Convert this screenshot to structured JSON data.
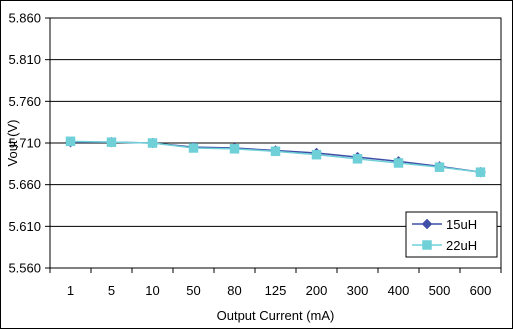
{
  "chart_data": {
    "type": "line",
    "title": "",
    "xlabel": "Output Current (mA)",
    "ylabel": "Vout (V)",
    "categories": [
      "1",
      "5",
      "10",
      "50",
      "80",
      "125",
      "200",
      "300",
      "400",
      "500",
      "600"
    ],
    "ylim": [
      5.56,
      5.86
    ],
    "yticks": [
      "5.860",
      "5.810",
      "5.760",
      "5.710",
      "5.660",
      "5.610",
      "5.560"
    ],
    "grid": "horizontal",
    "legend_position": "bottom-right",
    "series": [
      {
        "name": "15uH",
        "marker": "diamond",
        "color": "#3f4fa8",
        "values": [
          5.711,
          5.711,
          5.71,
          5.705,
          5.704,
          5.701,
          5.698,
          5.693,
          5.688,
          5.682,
          5.675
        ]
      },
      {
        "name": "22uH",
        "marker": "square",
        "color": "#6fd0d8",
        "values": [
          5.712,
          5.711,
          5.71,
          5.704,
          5.703,
          5.7,
          5.696,
          5.691,
          5.686,
          5.681,
          5.675
        ]
      }
    ]
  }
}
